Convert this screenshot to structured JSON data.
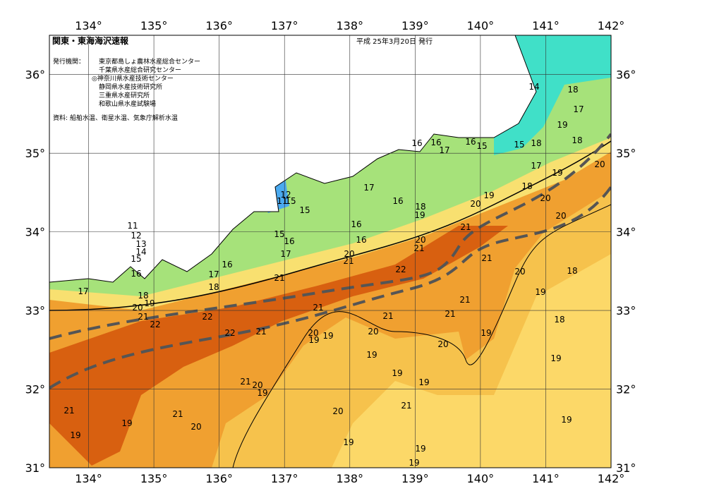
{
  "header": {
    "title": "関東・東海海沢速報",
    "issued": "平成 25年3月20日 発行",
    "issuers_label": "発行機関：",
    "issuers": [
      "東京都島しょ農林水産総合センター",
      "千葉県水産総合研究センター",
      "◎神奈川県水産技術センター",
      "静岡県水産技術研究所",
      "三重県水産研究所",
      "和歌山県水産試験場"
    ],
    "sources": "資料: 船舶水温、衛星水温、気象庁解析水温"
  },
  "map": {
    "xlim": [
      133.4,
      142
    ],
    "ylim": [
      31,
      36.5
    ],
    "xticks": [
      {
        "value": 134,
        "label": "134°"
      },
      {
        "value": 135,
        "label": "135°"
      },
      {
        "value": 136,
        "label": "136°"
      },
      {
        "value": 137,
        "label": "137°"
      },
      {
        "value": 138,
        "label": "138°"
      },
      {
        "value": 139,
        "label": "139°"
      },
      {
        "value": 140,
        "label": "140°"
      },
      {
        "value": 141,
        "label": "141°"
      },
      {
        "value": 142,
        "label": "142°"
      }
    ],
    "yticks": [
      {
        "value": 31,
        "label": "31°"
      },
      {
        "value": 32,
        "label": "32°"
      },
      {
        "value": 33,
        "label": "33°"
      },
      {
        "value": 34,
        "label": "34°"
      },
      {
        "value": 35,
        "label": "35°"
      },
      {
        "value": 36,
        "label": "36°"
      }
    ],
    "contour_labels": [
      14,
      18,
      17,
      19,
      18,
      16,
      16,
      17,
      16,
      15,
      15,
      18,
      17,
      19,
      20,
      17,
      16,
      18,
      19,
      18,
      19,
      20,
      20,
      12,
      11,
      15,
      15,
      16,
      16,
      15,
      16,
      17,
      16,
      17,
      18,
      11,
      12,
      13,
      14,
      15,
      16,
      17,
      18,
      20,
      21,
      22,
      19,
      20,
      21,
      20,
      21,
      21,
      22,
      21,
      21,
      21,
      21,
      21,
      21,
      20,
      20,
      19,
      18,
      18,
      22,
      22,
      21,
      20,
      19,
      19,
      20,
      20,
      19,
      19,
      19,
      19,
      19,
      21,
      20,
      19,
      19,
      21,
      21,
      21,
      20,
      20,
      19,
      19,
      19,
      19,
      19
    ]
  }
}
